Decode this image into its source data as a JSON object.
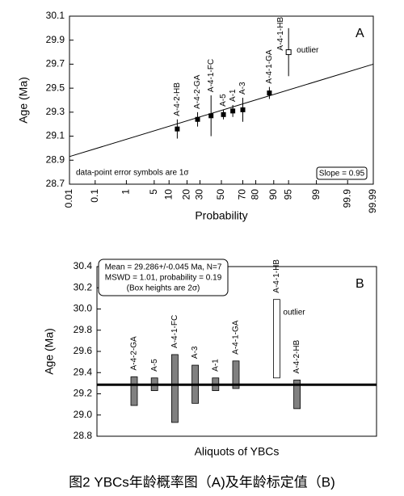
{
  "chart_data": [
    {
      "type": "probability",
      "panel_label": "A",
      "y_label": "Age (Ma)",
      "x_label": "Probability",
      "ylim": [
        28.7,
        30.1
      ],
      "yticks": [
        28.7,
        28.9,
        29.1,
        29.3,
        29.5,
        29.7,
        29.9,
        30.1
      ],
      "xlim": [
        0.01,
        99.99
      ],
      "xticks": [
        0.01,
        0.1,
        1,
        5,
        10,
        20,
        30,
        50,
        70,
        80,
        90,
        95,
        99,
        99.9,
        99.99
      ],
      "x_scale": "probability",
      "labels": [
        "A-4-2-HB",
        "A-4-2-GA",
        "A-4-1-FC",
        "A-5",
        "A-1",
        "A-3",
        "A-4-1-GA"
      ],
      "x": [
        14,
        28,
        40,
        52,
        61,
        70,
        88
      ],
      "values": [
        29.16,
        29.24,
        29.27,
        29.28,
        29.31,
        29.32,
        29.46
      ],
      "errors": [
        0.08,
        0.06,
        0.17,
        0.04,
        0.05,
        0.1,
        0.05
      ],
      "color": "#000000",
      "outlier": {
        "label": "A-4-1-HB",
        "x": 95,
        "value": 29.8,
        "error": 0.2,
        "text": "outlier"
      },
      "fit_line": {
        "x": [
          0.01,
          99.99
        ],
        "y": [
          28.93,
          29.7
        ]
      },
      "note": "data-point error symbols are 1σ",
      "slope_label": "Slope = 0.95"
    },
    {
      "type": "range",
      "panel_label": "B",
      "y_label": "Age (Ma)",
      "x_label": "Aliquots of YBCs",
      "ylim": [
        28.8,
        30.4
      ],
      "yticks": [
        28.8,
        {
          "value": 29,
          "label": "29.0"
        },
        29.2,
        29.4,
        29.6,
        29.8,
        {
          "value": 30,
          "label": "30.0"
        },
        30.2,
        30.4
      ],
      "categories": [
        "A-4-2-GA",
        "A-5",
        "A-4-1-FC",
        "A-3",
        "A-1",
        "A-4-1-GA",
        "A-4-1-HB",
        "A-4-2-HB"
      ],
      "low": [
        29.09,
        29.23,
        28.93,
        29.11,
        29.23,
        29.25,
        29.35,
        29.06
      ],
      "high": [
        29.36,
        29.35,
        29.57,
        29.47,
        29.35,
        29.51,
        30.09,
        29.33
      ],
      "colors": [
        "#808080",
        "#808080",
        "#808080",
        "#808080",
        "#808080",
        "#808080",
        "#ffffff",
        "#808080"
      ],
      "mean": 29.286,
      "stats": [
        "Mean = 29.286+/-0.045 Ma, N=7",
        "MSWD = 1.01, probability = 0.19",
        "(Box heights are 2σ)"
      ],
      "outlier_text": "outlier"
    }
  ],
  "caption": "图2 YBCs年龄概率图（A)及年龄标定值（B)"
}
